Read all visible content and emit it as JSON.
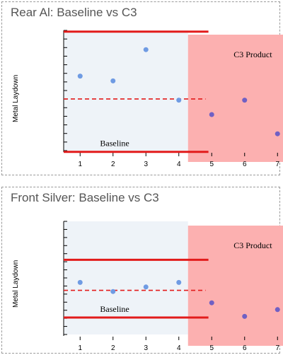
{
  "chart_data": [
    {
      "type": "scatter",
      "title": "Rear Al: Baseline vs C3",
      "ylabel": "Metal Laydown",
      "xlabel": "",
      "x": [
        1,
        2,
        3,
        4,
        5,
        6,
        7
      ],
      "values": [
        6.2,
        5.8,
        8.4,
        4.2,
        3.0,
        4.2,
        1.4
      ],
      "point_colors": [
        "#6f9be3",
        "#6f9be3",
        "#6f9be3",
        "#6f9be3",
        "#7060c4",
        "#7060c4",
        "#7060c4"
      ],
      "xlim": [
        0.5,
        7.5
      ],
      "ylim": [
        0,
        10
      ],
      "annotations": {
        "baseline": "Baseline",
        "product": "C3 Product"
      },
      "reference_lines": {
        "upper": 9.9,
        "mean": 4.3,
        "lower": -0.1,
        "extent_x": [
          0.5,
          4.9
        ]
      },
      "regions": {
        "baseline_x": [
          0.5,
          4.28
        ],
        "product_x": [
          4.28,
          7.37
        ]
      },
      "colors": {
        "baseline_bg": "#eef3f8",
        "product_bg": "#fcb0b0",
        "limit": "#e21b1b"
      }
    },
    {
      "type": "scatter",
      "title": "Front Silver: Baseline vs C3",
      "ylabel": "Metal Laydown",
      "xlabel": "",
      "x": [
        1,
        2,
        3,
        4,
        5,
        6,
        7
      ],
      "values": [
        4.6,
        3.8,
        4.2,
        4.6,
        2.8,
        1.6,
        2.2
      ],
      "point_colors": [
        "#6f9be3",
        "#6f9be3",
        "#6f9be3",
        "#6f9be3",
        "#7060c4",
        "#7060c4",
        "#7060c4"
      ],
      "xlim": [
        0.5,
        7.5
      ],
      "ylim": [
        0,
        10
      ],
      "annotations": {
        "baseline": "Baseline",
        "product": "C3 Product"
      },
      "reference_lines": {
        "upper": 6.6,
        "mean": 3.9,
        "lower": 1.5,
        "extent_x": [
          0.5,
          4.9
        ]
      },
      "regions": {
        "baseline_x": [
          0.5,
          4.28
        ],
        "product_x": [
          4.28,
          7.37
        ]
      },
      "colors": {
        "baseline_bg": "#eef3f8",
        "product_bg": "#fcb0b0",
        "limit": "#e21b1b"
      }
    }
  ]
}
